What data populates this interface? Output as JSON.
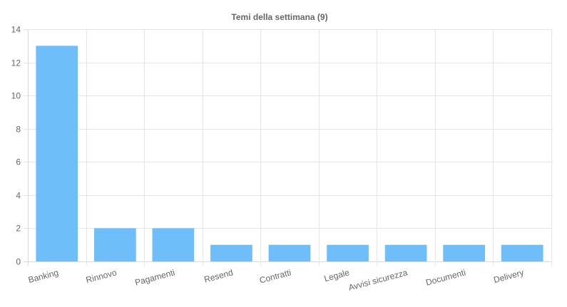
{
  "chart_data": {
    "type": "bar",
    "title": "Temi della settimana (9)",
    "xlabel": "",
    "ylabel": "",
    "categories": [
      "Banking",
      "Rinnovo",
      "Pagamenti",
      "Resend",
      "Contratti",
      "Legale",
      "Avvisi sicurezza",
      "Documenti",
      "Delivery"
    ],
    "values": [
      13,
      2,
      2,
      1,
      1,
      1,
      1,
      1,
      1
    ],
    "ylim": [
      0,
      14
    ],
    "yticks": [
      0,
      2,
      4,
      6,
      8,
      10,
      12,
      14
    ],
    "grid": true,
    "legend": "none",
    "colors": {
      "bar": "#6ebff9",
      "grid": "#e5e5e5",
      "text": "#666666"
    }
  }
}
